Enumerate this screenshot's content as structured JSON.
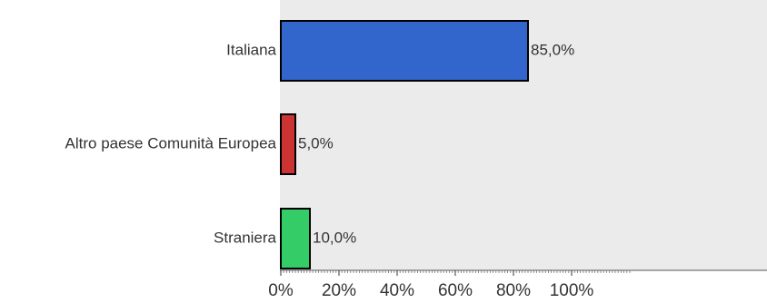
{
  "chart_data": {
    "type": "bar",
    "orientation": "horizontal",
    "categories": [
      "Italiana",
      "Altro paese Comunità Europea",
      "Straniera"
    ],
    "values": [
      85,
      5,
      10
    ],
    "data_labels": [
      "85,0%",
      "5,0%",
      "10,0%"
    ],
    "colors": [
      "#3366cc",
      "#cc3333",
      "#33cc66"
    ],
    "x_ticks": [
      {
        "value": 0,
        "label": "0%"
      },
      {
        "value": 20,
        "label": "20%"
      },
      {
        "value": 40,
        "label": "40%"
      },
      {
        "value": 60,
        "label": "60%"
      },
      {
        "value": 80,
        "label": "80%"
      },
      {
        "value": 100,
        "label": "100%"
      }
    ],
    "xlim": [
      0,
      120
    ],
    "grid": false,
    "legend": "none",
    "plot_background": "#ebebeb",
    "bar_outline": "#000000"
  }
}
